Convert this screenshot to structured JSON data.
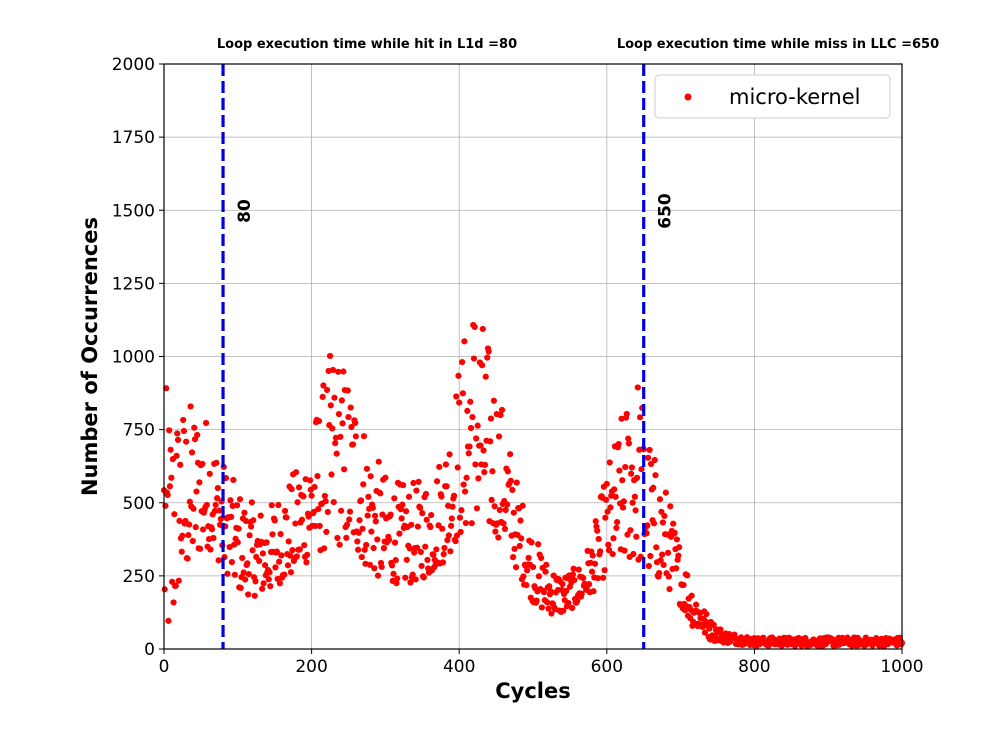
{
  "chart_data": {
    "type": "scatter",
    "xlabel": "Cycles",
    "ylabel": "Number of Occurrences",
    "xlim": [
      0,
      1000
    ],
    "ylim": [
      0,
      2000
    ],
    "xticks": [
      0,
      200,
      400,
      600,
      800,
      1000
    ],
    "yticks": [
      0,
      250,
      500,
      750,
      1000,
      1250,
      1500,
      1750,
      2000
    ],
    "grid": true,
    "legend_position": "top-right",
    "series": [
      {
        "name": "micro-kernel",
        "color": "#ff0000"
      }
    ],
    "annotations": [
      {
        "text": "Loop execution time while hit in L1d =80",
        "x": 80
      },
      {
        "text": "Loop execution time while miss in LLC =650",
        "x": 650
      }
    ],
    "vlines": [
      {
        "x": 80,
        "label": "80",
        "color": "#0000dd",
        "style": "dashed"
      },
      {
        "x": 650,
        "label": "650",
        "color": "#0000dd",
        "style": "dashed"
      }
    ],
    "points_note": "noisy scatter, one point per cycle value 0-1000",
    "profile": {
      "envelope": [
        [
          0,
          40,
          930
        ],
        [
          2,
          10,
          900
        ],
        [
          10,
          20,
          870
        ],
        [
          20,
          200,
          850
        ],
        [
          40,
          300,
          850
        ],
        [
          60,
          350,
          800
        ],
        [
          80,
          280,
          650
        ],
        [
          100,
          200,
          550
        ],
        [
          120,
          180,
          500
        ],
        [
          140,
          190,
          480
        ],
        [
          160,
          230,
          560
        ],
        [
          180,
          260,
          620
        ],
        [
          200,
          310,
          760
        ],
        [
          230,
          360,
          1060
        ],
        [
          260,
          330,
          900
        ],
        [
          280,
          260,
          700
        ],
        [
          300,
          230,
          600
        ],
        [
          330,
          220,
          560
        ],
        [
          360,
          250,
          600
        ],
        [
          380,
          300,
          700
        ],
        [
          400,
          380,
          1000
        ],
        [
          420,
          430,
          1250
        ],
        [
          440,
          400,
          1050
        ],
        [
          460,
          370,
          820
        ],
        [
          480,
          260,
          560
        ],
        [
          500,
          160,
          400
        ],
        [
          520,
          120,
          300
        ],
        [
          540,
          120,
          260
        ],
        [
          560,
          150,
          280
        ],
        [
          580,
          190,
          380
        ],
        [
          600,
          260,
          620
        ],
        [
          620,
          300,
          800
        ],
        [
          640,
          300,
          990
        ],
        [
          660,
          250,
          700
        ],
        [
          680,
          220,
          560
        ],
        [
          700,
          150,
          360
        ],
        [
          720,
          60,
          200
        ],
        [
          740,
          30,
          100
        ],
        [
          760,
          20,
          60
        ],
        [
          800,
          10,
          40
        ],
        [
          1000,
          10,
          40
        ]
      ]
    }
  }
}
